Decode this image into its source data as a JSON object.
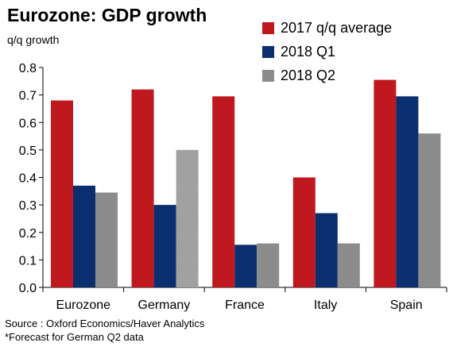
{
  "chart_data": {
    "type": "bar",
    "title": "Eurozone: GDP growth",
    "ylabel": "q/q growth",
    "xlabel": "",
    "categories": [
      "Eurozone",
      "Germany",
      "France",
      "Italy",
      "Spain"
    ],
    "series": [
      {
        "name": "2017 q/q average",
        "color": "#c0181f",
        "values": [
          0.68,
          0.72,
          0.695,
          0.4,
          0.755
        ]
      },
      {
        "name": "2018 Q1",
        "color": "#0b2f6e",
        "values": [
          0.37,
          0.3,
          0.155,
          0.27,
          0.695
        ]
      },
      {
        "name": "2018 Q2",
        "color": "#8c8c8c",
        "values": [
          0.345,
          0.5,
          0.16,
          0.16,
          0.56
        ]
      }
    ],
    "ylim": [
      0,
      0.8
    ],
    "yticks": [
      "0.0",
      "0.1",
      "0.2",
      "0.3",
      "0.4",
      "0.5",
      "0.6",
      "0.7",
      "0.8"
    ],
    "forecast_bars": [
      {
        "series": 2,
        "category": 1
      }
    ],
    "grid": false,
    "legend": "top-right"
  },
  "footer": {
    "source": "Source : Oxford Economics/Haver Analytics",
    "note": "*Forecast for German Q2 data"
  }
}
